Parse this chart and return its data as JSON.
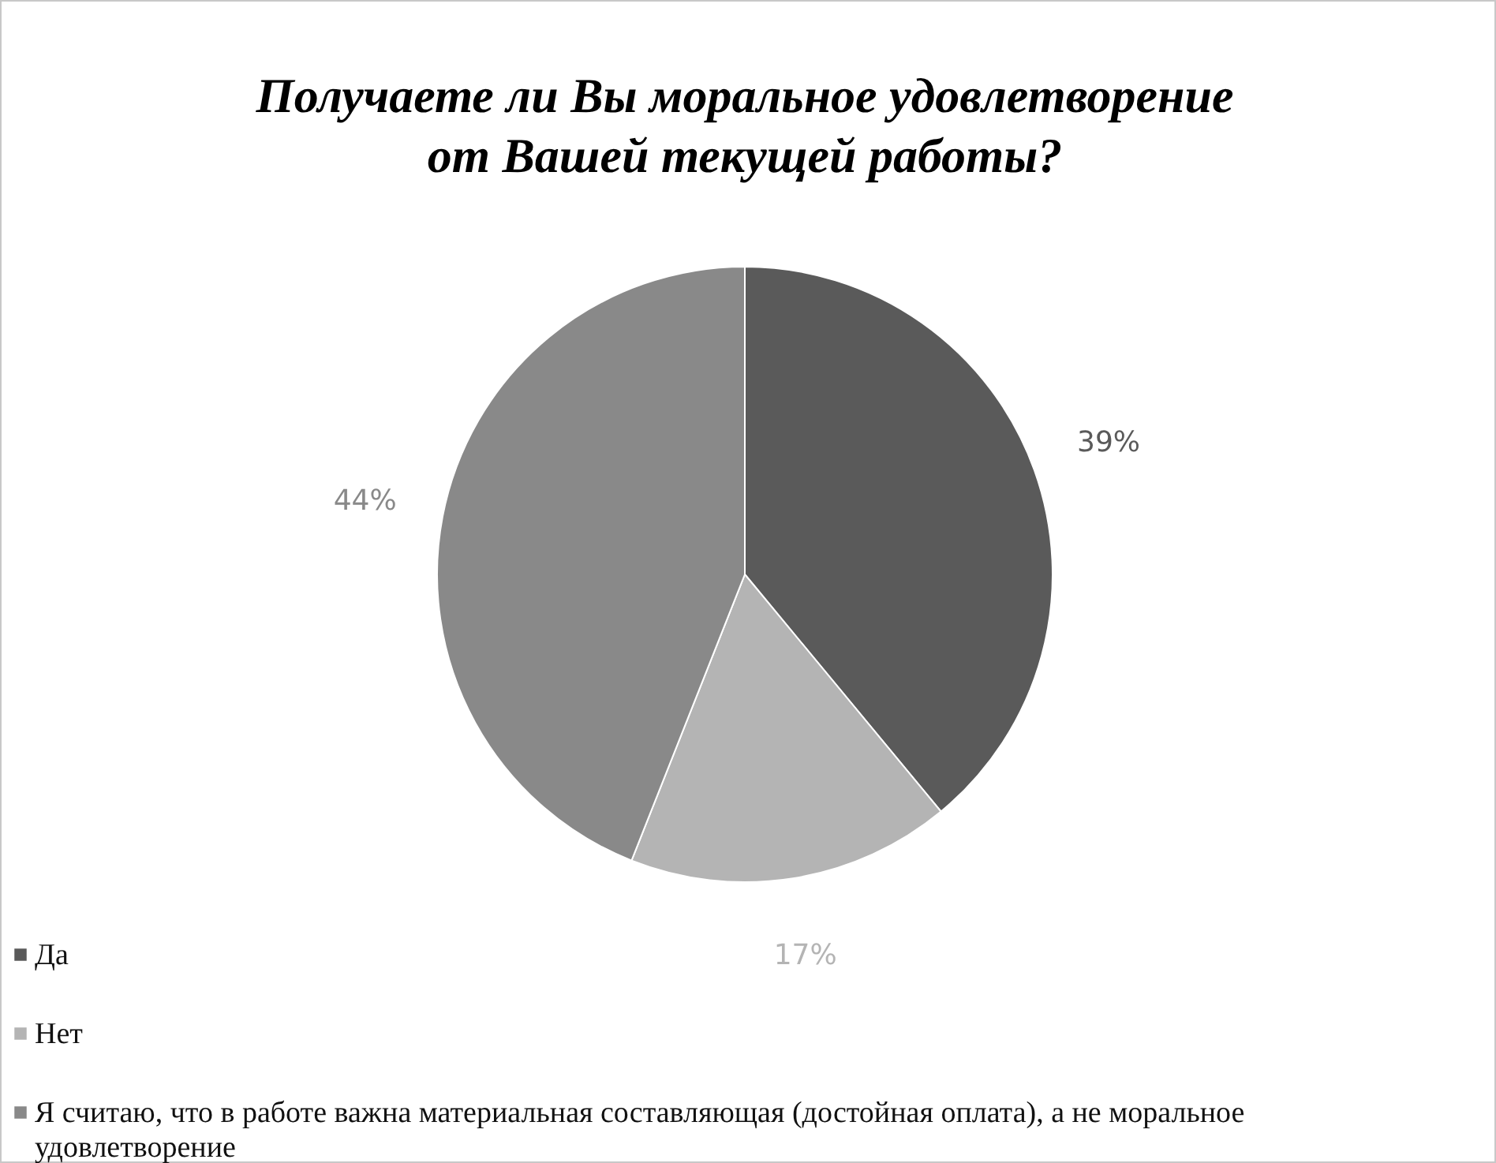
{
  "chart_data": {
    "type": "pie",
    "title": "Получаете ли Вы моральное удовлетворение\nот Вашей текущей работы?",
    "categories": [
      "Да",
      "Нет",
      "Я считаю, что в работе важна материальная составляющая (достойная оплата), а не моральное удовлетворение"
    ],
    "values": [
      39,
      17,
      44
    ],
    "colors": [
      "#5a5a5a",
      "#b4b4b4",
      "#898989"
    ],
    "value_labels": [
      "39%",
      "17%",
      "44%"
    ],
    "legend": "bottom left"
  }
}
